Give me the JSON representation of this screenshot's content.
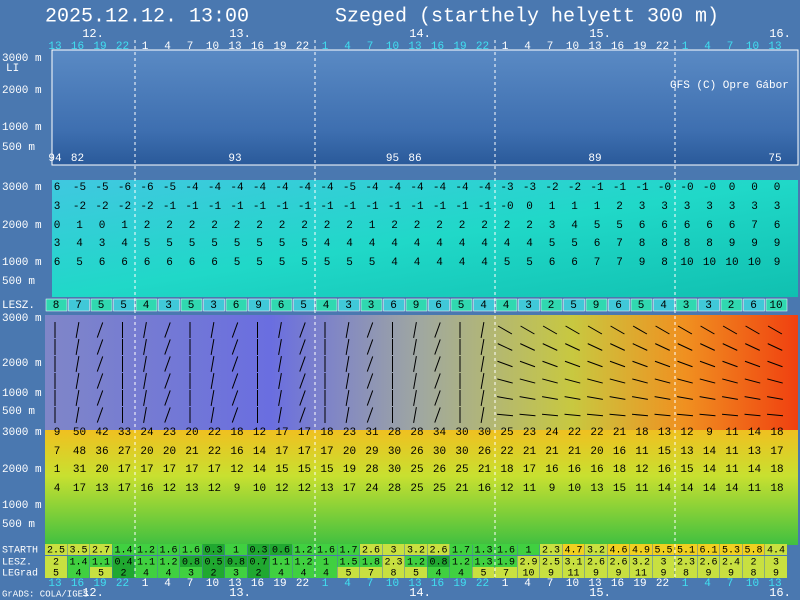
{
  "header": {
    "title": "2025.12.12. 13:00",
    "location": "Szeged (starthely helyett 300 m)"
  },
  "days": [
    "12.",
    "13.",
    "14.",
    "15.",
    "16."
  ],
  "hours": [
    13,
    16,
    19,
    22,
    1,
    4,
    7,
    10,
    13,
    16,
    19,
    22,
    1,
    4,
    7,
    10,
    13,
    16,
    19,
    22,
    1,
    4,
    7,
    10,
    13,
    16,
    19,
    22,
    1,
    4,
    7,
    10,
    13
  ],
  "li_panel": {
    "label": "LI",
    "altitudes": [
      "3000 m",
      "2000 m",
      "1000 m",
      "500 m"
    ],
    "credit": "GFS (C) Opre Gábor",
    "values": [
      "94",
      "82",
      null,
      null,
      null,
      null,
      null,
      null,
      "93",
      null,
      null,
      null,
      null,
      null,
      null,
      "95",
      "86",
      null,
      null,
      null,
      null,
      null,
      null,
      null,
      "89",
      null,
      null,
      null,
      null,
      null,
      null,
      null,
      "75"
    ]
  },
  "temp_panel": {
    "altitudes": [
      "3000 m",
      "2000 m",
      "1000 m",
      "500 m"
    ],
    "rows": [
      [
        "6",
        "-5",
        "-5",
        "-6",
        "-6",
        "-5",
        "-4",
        "-4",
        "-4",
        "-4",
        "-4",
        "-4",
        "-4",
        "-5",
        "-4",
        "-4",
        "-4",
        "-4",
        "-4",
        "-4",
        "-3",
        "-3",
        "-2",
        "-2",
        "-1",
        "-1",
        "-1",
        "-0",
        "-0",
        "-0",
        "0",
        "0",
        "0"
      ],
      [
        "3",
        "-2",
        "-2",
        "-2",
        "-2",
        "-1",
        "-1",
        "-1",
        "-1",
        "-1",
        "-1",
        "-1",
        "-1",
        "-1",
        "-1",
        "-1",
        "-1",
        "-1",
        "-1",
        "-1",
        "-0",
        "0",
        "1",
        "1",
        "1",
        "2",
        "3",
        "3",
        "3",
        "3",
        "3",
        "3",
        "3"
      ],
      [
        "0",
        "1",
        "0",
        "1",
        "2",
        "2",
        "2",
        "2",
        "2",
        "2",
        "2",
        "2",
        "2",
        "2",
        "1",
        "2",
        "2",
        "2",
        "2",
        "2",
        "2",
        "2",
        "3",
        "4",
        "5",
        "5",
        "6",
        "6",
        "6",
        "6",
        "6",
        "7",
        "6"
      ],
      [
        "3",
        "4",
        "3",
        "4",
        "5",
        "5",
        "5",
        "5",
        "5",
        "5",
        "5",
        "5",
        "4",
        "4",
        "4",
        "4",
        "4",
        "4",
        "4",
        "4",
        "4",
        "4",
        "5",
        "5",
        "6",
        "7",
        "8",
        "8",
        "8",
        "8",
        "9",
        "9",
        "9"
      ],
      [
        "6",
        "5",
        "6",
        "6",
        "6",
        "6",
        "6",
        "6",
        "5",
        "5",
        "5",
        "5",
        "5",
        "5",
        "5",
        "4",
        "4",
        "4",
        "4",
        "4",
        "5",
        "5",
        "6",
        "6",
        "7",
        "7",
        "9",
        "8",
        "10",
        "10",
        "10",
        "10",
        "9"
      ]
    ]
  },
  "lesz_row": {
    "label": "LESZ.",
    "values": [
      8,
      7,
      5,
      5,
      4,
      3,
      5,
      3,
      6,
      9,
      6,
      5,
      4,
      3,
      3,
      6,
      9,
      6,
      5,
      4,
      4,
      3,
      2,
      5,
      9,
      6,
      5,
      4,
      3,
      3,
      2,
      6,
      10
    ]
  },
  "wind_panel": {
    "altitudes": [
      "3000 m",
      "2000 m",
      "1000 m",
      "500 m"
    ]
  },
  "speed_panel": {
    "altitudes": [
      "3000 m",
      "2000 m",
      "1000 m",
      "500 m"
    ],
    "rows": [
      [
        9,
        50,
        42,
        33,
        24,
        23,
        20,
        22,
        18,
        12,
        17,
        17,
        18,
        23,
        31,
        28,
        28,
        34,
        30,
        30,
        25,
        23,
        24,
        22,
        22,
        21,
        18,
        13,
        12,
        9,
        11,
        14,
        18
      ],
      [
        7,
        48,
        36,
        27,
        20,
        20,
        21,
        22,
        16,
        14,
        17,
        17,
        17,
        20,
        29,
        30,
        26,
        30,
        30,
        26,
        22,
        21,
        21,
        21,
        20,
        16,
        11,
        15,
        13,
        14,
        11,
        13,
        17
      ],
      [
        1,
        31,
        20,
        17,
        17,
        17,
        17,
        17,
        12,
        14,
        15,
        15,
        15,
        19,
        28,
        30,
        25,
        26,
        25,
        21,
        18,
        17,
        16,
        16,
        16,
        18,
        12,
        16,
        15,
        14,
        11,
        14,
        18
      ],
      [
        4,
        17,
        13,
        17,
        16,
        12,
        13,
        12,
        9,
        10,
        12,
        12,
        13,
        17,
        24,
        28,
        25,
        25,
        21,
        16,
        12,
        11,
        9,
        10,
        13,
        15,
        11,
        14,
        14,
        14,
        14,
        11,
        18
      ]
    ]
  },
  "bottom_rows": [
    {
      "label": "STARTH",
      "values": [
        2.5,
        3.5,
        2.7,
        1.4,
        1.2,
        1.6,
        1.6,
        0.3,
        1,
        0.3,
        0.6,
        1.2,
        1.6,
        1.7,
        2.6,
        3,
        3.2,
        2.6,
        1.7,
        1.3,
        1.6,
        1,
        2.3,
        4.7,
        3.2,
        4.6,
        4.9,
        5.5,
        5.1,
        6.1,
        5.3,
        5.8,
        4.4
      ]
    },
    {
      "label": "LESZ.",
      "values": [
        2,
        1.4,
        1.1,
        0.4,
        1.1,
        1.2,
        0.8,
        0.5,
        0.8,
        0.7,
        1.1,
        1.2,
        1,
        1.5,
        1.8,
        2.3,
        1.2,
        0.8,
        1.2,
        1.3,
        1.9,
        2.9,
        2.5,
        3.1,
        2.6,
        2.6,
        3.2,
        3,
        2.3,
        2.6,
        2.4,
        2,
        3
      ]
    },
    {
      "label": "LEGrad",
      "values": [
        5,
        4,
        5,
        2,
        4,
        4,
        3,
        2,
        3,
        2,
        4,
        4,
        4,
        5,
        7,
        8,
        5,
        4,
        4,
        5,
        7,
        10,
        9,
        11,
        9,
        9,
        11,
        9,
        8,
        9,
        9,
        8,
        9
      ]
    }
  ],
  "footer": "GrADS: COLA/IGES"
}
